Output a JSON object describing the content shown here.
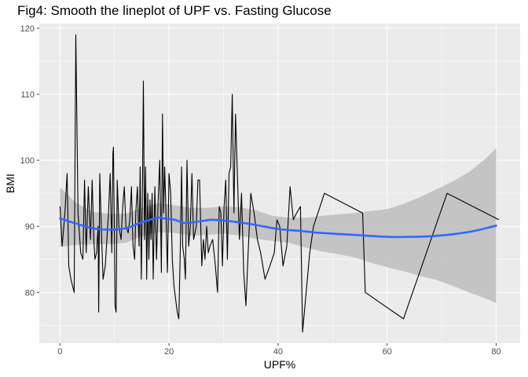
{
  "chart_data": {
    "type": "line",
    "title": "Fig4: Smooth the lineplot of UPF vs. Fasting Glucose",
    "xlabel": "UPF%",
    "ylabel": "BMI",
    "xlim": [
      -3.8,
      84.4
    ],
    "ylim": [
      72.3,
      120.7
    ],
    "x_ticks": [
      0,
      20,
      40,
      60,
      80
    ],
    "y_ticks": [
      80,
      90,
      100,
      110,
      120
    ],
    "grid": true,
    "legend": "none",
    "colors": {
      "panel": "#ebebeb",
      "grid": "#ffffff",
      "line": "#000000",
      "smooth": "#3366ff",
      "ribbon": "#bdbdbd"
    },
    "series": [
      {
        "style": "line",
        "points": [
          [
            0.0,
            93
          ],
          [
            0.4,
            87
          ],
          [
            0.9,
            92
          ],
          [
            1.3,
            98
          ],
          [
            1.6,
            84
          ],
          [
            2.0,
            82
          ],
          [
            2.6,
            80
          ],
          [
            2.9,
            119
          ],
          [
            3.3,
            92
          ],
          [
            3.8,
            86
          ],
          [
            4.2,
            85
          ],
          [
            4.5,
            97
          ],
          [
            4.8,
            86
          ],
          [
            5.2,
            96
          ],
          [
            5.6,
            88
          ],
          [
            5.9,
            97
          ],
          [
            6.2,
            88
          ],
          [
            6.4,
            85
          ],
          [
            6.7,
            86
          ],
          [
            7.0,
            90
          ],
          [
            7.1,
            77
          ],
          [
            7.3,
            98
          ],
          [
            7.6,
            89
          ],
          [
            7.9,
            82
          ],
          [
            8.3,
            84
          ],
          [
            8.6,
            88
          ],
          [
            8.9,
            92
          ],
          [
            9.2,
            98
          ],
          [
            9.5,
            86
          ],
          [
            9.7,
            101
          ],
          [
            9.8,
            102
          ],
          [
            10.0,
            87
          ],
          [
            10.1,
            78
          ],
          [
            10.3,
            77
          ],
          [
            10.5,
            97
          ],
          [
            10.8,
            90
          ],
          [
            11.2,
            88
          ],
          [
            11.5,
            93
          ],
          [
            11.8,
            96
          ],
          [
            12.1,
            90
          ],
          [
            12.5,
            89
          ],
          [
            12.8,
            91
          ],
          [
            13.1,
            96
          ],
          [
            13.4,
            87
          ],
          [
            13.7,
            85
          ],
          [
            13.9,
            92
          ],
          [
            14.2,
            96
          ],
          [
            14.5,
            87
          ],
          [
            14.7,
            99
          ],
          [
            14.9,
            82
          ],
          [
            15.1,
            93
          ],
          [
            15.3,
            112
          ],
          [
            15.5,
            88
          ],
          [
            15.7,
            99
          ],
          [
            15.9,
            82
          ],
          [
            16.1,
            95
          ],
          [
            16.3,
            85
          ],
          [
            16.5,
            94
          ],
          [
            16.7,
            88
          ],
          [
            16.9,
            95
          ],
          [
            17.1,
            82
          ],
          [
            17.4,
            96
          ],
          [
            17.7,
            85
          ],
          [
            18.0,
            94
          ],
          [
            18.3,
            100
          ],
          [
            18.6,
            83
          ],
          [
            18.8,
            107
          ],
          [
            19.0,
            92
          ],
          [
            19.2,
            99
          ],
          [
            19.4,
            93
          ],
          [
            19.7,
            83
          ],
          [
            20.0,
            98
          ],
          [
            20.3,
            95
          ],
          [
            20.6,
            85
          ],
          [
            20.9,
            81
          ],
          [
            21.2,
            79
          ],
          [
            21.5,
            77
          ],
          [
            21.8,
            76
          ],
          [
            22.1,
            88
          ],
          [
            22.3,
            99
          ],
          [
            22.5,
            87
          ],
          [
            22.8,
            85
          ],
          [
            23.0,
            82
          ],
          [
            23.3,
            100
          ],
          [
            23.6,
            87
          ],
          [
            23.9,
            90
          ],
          [
            24.2,
            98
          ],
          [
            24.5,
            88
          ],
          [
            25.0,
            90
          ],
          [
            25.3,
            97
          ],
          [
            25.6,
            97
          ],
          [
            26.0,
            84
          ],
          [
            26.3,
            88
          ],
          [
            26.6,
            85
          ],
          [
            26.9,
            90
          ],
          [
            27.2,
            86
          ],
          [
            27.5,
            87
          ],
          [
            28.0,
            88
          ],
          [
            28.5,
            84
          ],
          [
            28.9,
            80
          ],
          [
            29.2,
            93
          ],
          [
            29.5,
            92
          ],
          [
            29.8,
            84
          ],
          [
            30.1,
            93
          ],
          [
            30.4,
            97
          ],
          [
            30.7,
            85
          ],
          [
            31.0,
            98
          ],
          [
            31.3,
            99
          ],
          [
            31.6,
            110
          ],
          [
            31.9,
            92
          ],
          [
            32.2,
            107
          ],
          [
            32.6,
            96
          ],
          [
            32.9,
            88
          ],
          [
            33.3,
            95
          ],
          [
            33.7,
            83
          ],
          [
            34.1,
            78
          ],
          [
            34.5,
            86
          ],
          [
            35.0,
            95
          ],
          [
            35.6,
            92
          ],
          [
            36.2,
            88
          ],
          [
            36.8,
            86
          ],
          [
            37.6,
            82
          ],
          [
            38.5,
            84
          ],
          [
            39.3,
            86
          ],
          [
            39.8,
            91
          ],
          [
            40.3,
            90
          ],
          [
            40.9,
            84
          ],
          [
            41.6,
            87
          ],
          [
            42.2,
            96
          ],
          [
            42.8,
            91
          ],
          [
            43.4,
            92
          ],
          [
            44.1,
            93
          ],
          [
            44.5,
            74
          ],
          [
            45.8,
            86
          ],
          [
            46.5,
            90
          ],
          [
            48.5,
            95
          ],
          [
            55.5,
            92
          ],
          [
            56.0,
            80
          ],
          [
            63.0,
            76
          ],
          [
            71.0,
            95
          ],
          [
            80.5,
            91
          ]
        ]
      },
      {
        "style": "smooth",
        "points": [
          [
            0,
            91.2
          ],
          [
            3,
            90.4
          ],
          [
            6,
            89.7
          ],
          [
            9,
            89.5
          ],
          [
            12,
            89.7
          ],
          [
            15,
            90.6
          ],
          [
            18,
            91.3
          ],
          [
            19,
            91.2
          ],
          [
            21,
            91.0
          ],
          [
            23,
            90.5
          ],
          [
            26,
            90.8
          ],
          [
            28,
            91.0
          ],
          [
            32,
            90.7
          ],
          [
            36,
            90.2
          ],
          [
            40,
            89.6
          ],
          [
            44,
            89.3
          ],
          [
            48,
            89.0
          ],
          [
            52,
            88.8
          ],
          [
            56,
            88.6
          ],
          [
            60,
            88.4
          ],
          [
            64,
            88.4
          ],
          [
            68,
            88.5
          ],
          [
            72,
            88.8
          ],
          [
            76,
            89.3
          ],
          [
            80,
            90.1
          ]
        ],
        "ci_lower": [
          [
            0,
            86.9
          ],
          [
            3,
            87.2
          ],
          [
            6,
            87.3
          ],
          [
            9,
            87.3
          ],
          [
            12,
            87.5
          ],
          [
            15,
            88.5
          ],
          [
            18,
            89.1
          ],
          [
            21,
            89.0
          ],
          [
            24,
            88.6
          ],
          [
            27,
            88.7
          ],
          [
            30,
            88.9
          ],
          [
            33,
            88.6
          ],
          [
            36,
            88.1
          ],
          [
            39,
            87.8
          ],
          [
            42,
            87.5
          ],
          [
            45,
            86.8
          ],
          [
            48,
            86.2
          ],
          [
            51,
            85.8
          ],
          [
            54,
            85.3
          ],
          [
            57,
            84.5
          ],
          [
            60,
            83.8
          ],
          [
            63,
            83.2
          ],
          [
            66,
            82.5
          ],
          [
            69,
            81.9
          ],
          [
            72,
            81.0
          ],
          [
            75,
            80.0
          ],
          [
            78,
            79.1
          ],
          [
            80,
            78.4
          ]
        ],
        "ci_upper": [
          [
            0,
            95.9
          ],
          [
            3,
            93.5
          ],
          [
            6,
            92.2
          ],
          [
            9,
            91.9
          ],
          [
            12,
            91.9
          ],
          [
            15,
            92.8
          ],
          [
            18,
            93.5
          ],
          [
            21,
            93.2
          ],
          [
            24,
            92.8
          ],
          [
            27,
            92.8
          ],
          [
            30,
            93.0
          ],
          [
            33,
            92.9
          ],
          [
            36,
            92.4
          ],
          [
            39,
            91.6
          ],
          [
            42,
            91.3
          ],
          [
            45,
            91.3
          ],
          [
            48,
            91.6
          ],
          [
            51,
            91.8
          ],
          [
            54,
            92.0
          ],
          [
            57,
            92.3
          ],
          [
            60,
            92.6
          ],
          [
            63,
            93.4
          ],
          [
            66,
            94.4
          ],
          [
            69,
            95.6
          ],
          [
            72,
            96.8
          ],
          [
            75,
            98.2
          ],
          [
            78,
            100.2
          ],
          [
            80,
            101.8
          ]
        ]
      }
    ]
  }
}
